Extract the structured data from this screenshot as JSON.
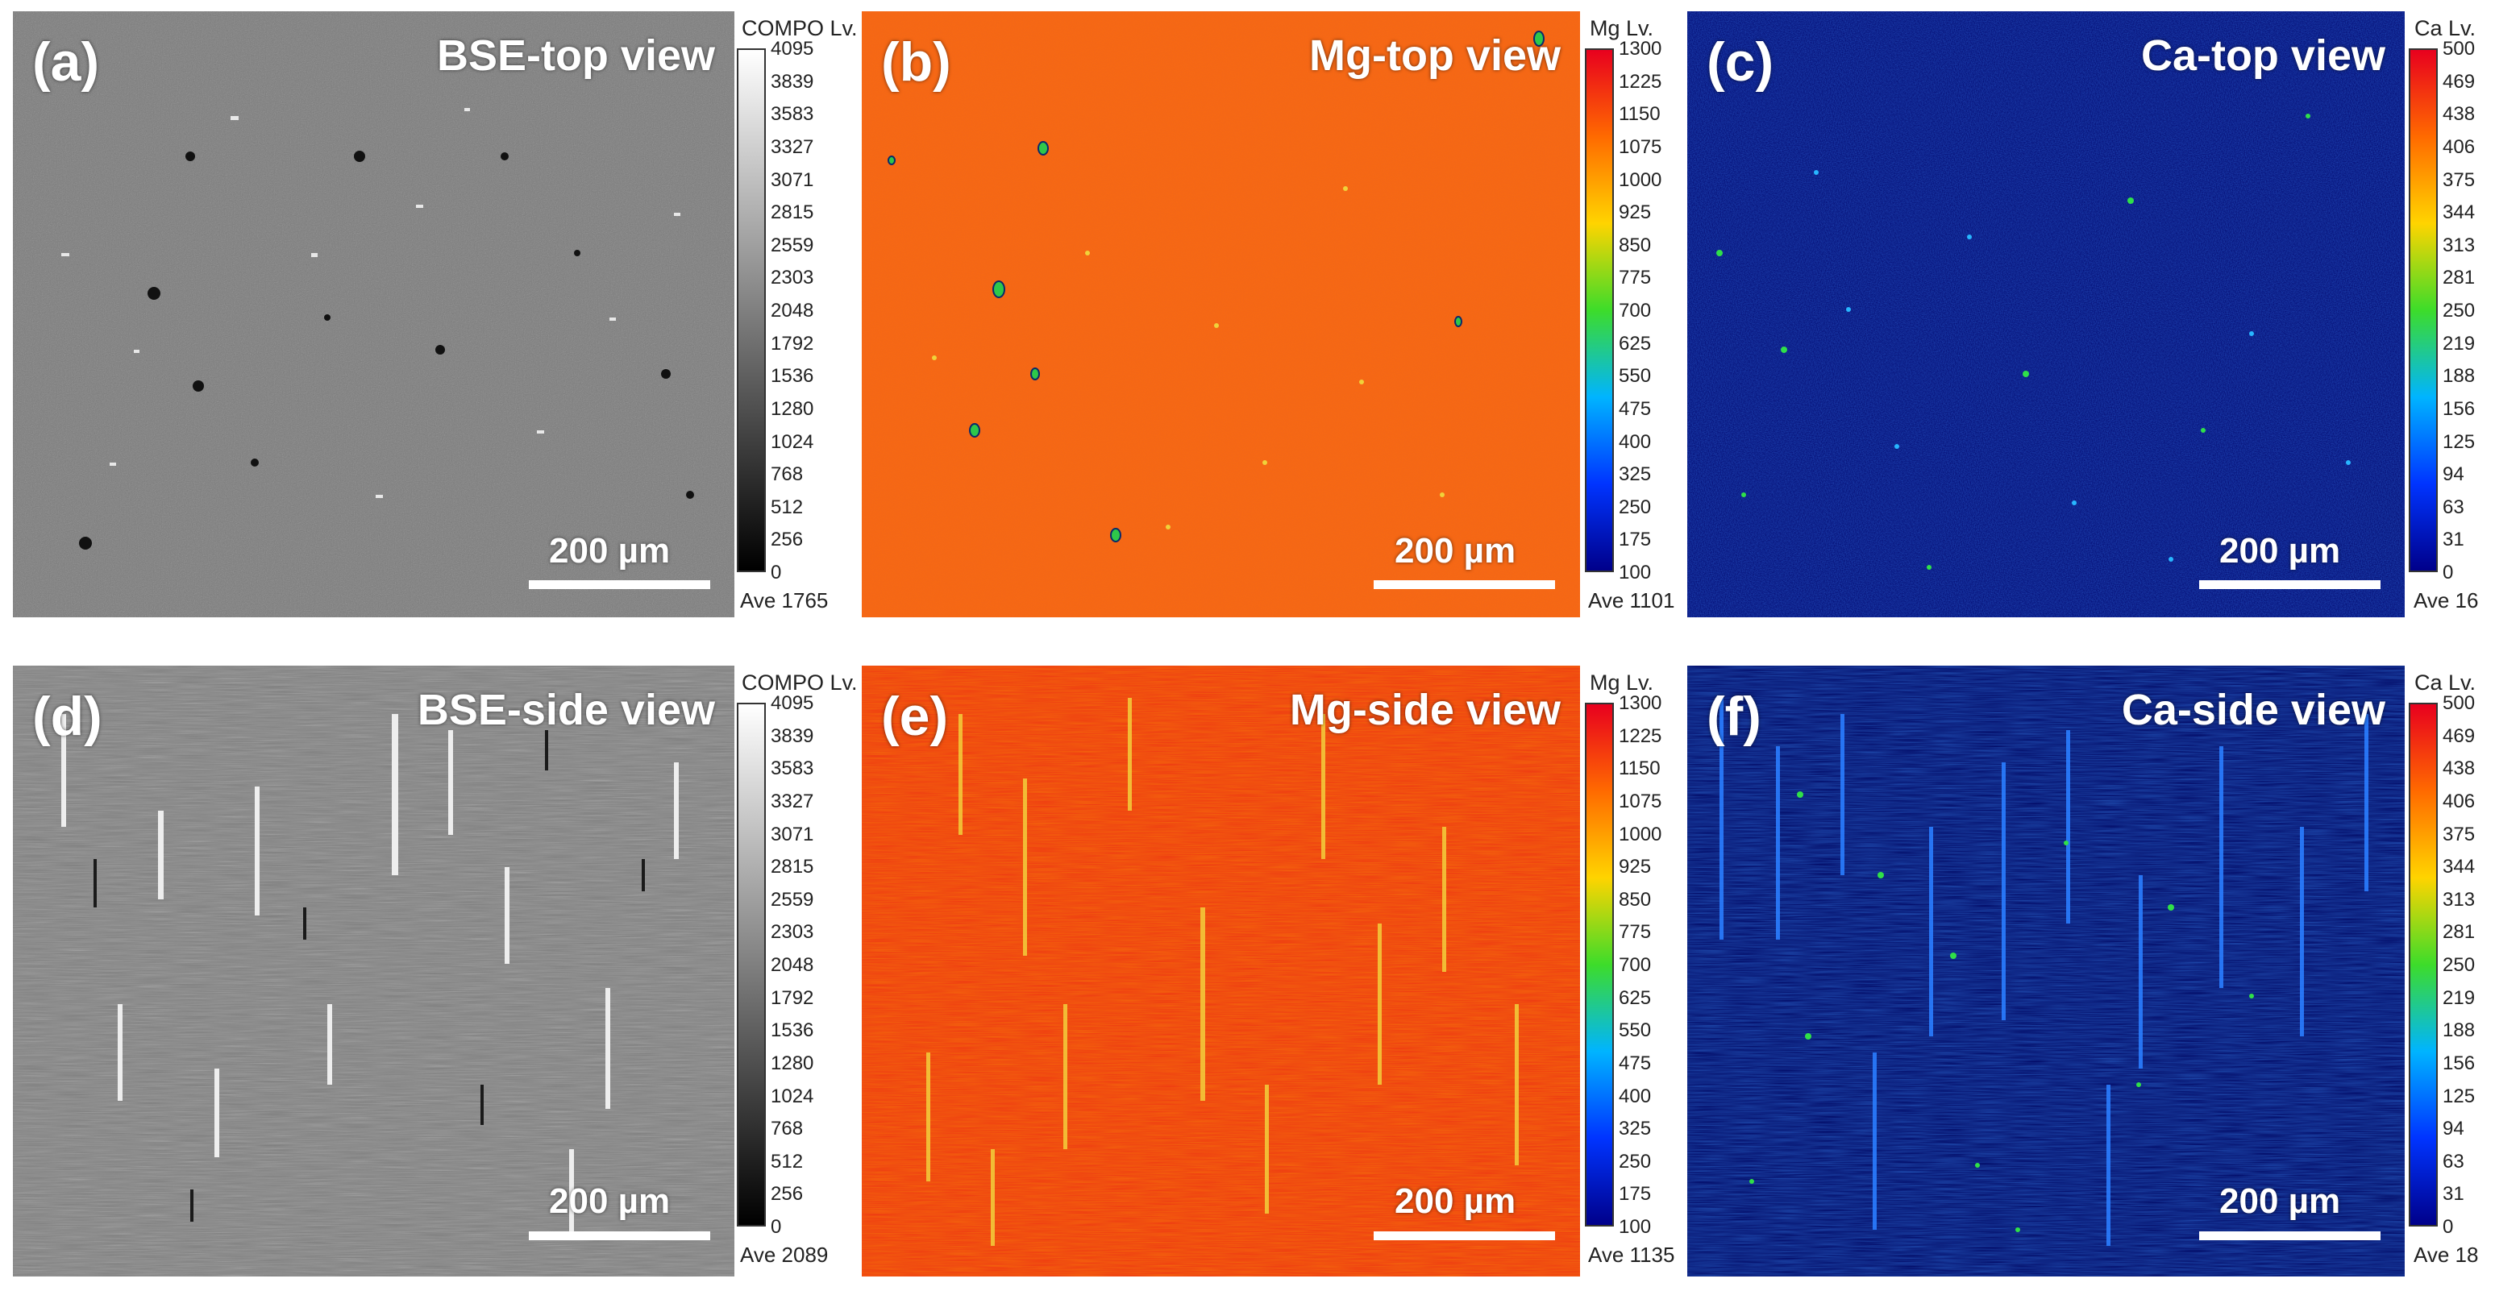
{
  "panels": [
    {
      "label": "(a)",
      "title": "BSE-top view",
      "scalebar": "200 µm",
      "cbar_header": "COMPO  Lv.",
      "ticks": [
        "4095",
        "3839",
        "3583",
        "3327",
        "3071",
        "2815",
        "2559",
        "2303",
        "2048",
        "1792",
        "1536",
        "1280",
        "1024",
        "768",
        "512",
        "256",
        "0"
      ],
      "average": "Ave 1765",
      "colormap": "gray"
    },
    {
      "label": "(b)",
      "title": "Mg-top view",
      "scalebar": "200 µm",
      "cbar_header": "Mg  Lv.",
      "ticks": [
        "1300",
        "1225",
        "1150",
        "1075",
        "1000",
        "925",
        "850",
        "775",
        "700",
        "625",
        "550",
        "475",
        "400",
        "325",
        "250",
        "175",
        "100"
      ],
      "average": "Ave 1101",
      "colormap": "jet"
    },
    {
      "label": "(c)",
      "title": "Ca-top view",
      "scalebar": "200 µm",
      "cbar_header": "Ca  Lv.",
      "ticks": [
        "500",
        "469",
        "438",
        "406",
        "375",
        "344",
        "313",
        "281",
        "250",
        "219",
        "188",
        "156",
        "125",
        "94",
        "63",
        "31",
        "0"
      ],
      "average": "Ave 16",
      "colormap": "jet"
    },
    {
      "label": "(d)",
      "title": "BSE-side view",
      "scalebar": "200 µm",
      "cbar_header": "COMPO  Lv.",
      "ticks": [
        "4095",
        "3839",
        "3583",
        "3327",
        "3071",
        "2815",
        "2559",
        "2303",
        "2048",
        "1792",
        "1536",
        "1280",
        "1024",
        "768",
        "512",
        "256",
        "0"
      ],
      "average": "Ave 2089",
      "colormap": "gray"
    },
    {
      "label": "(e)",
      "title": "Mg-side view",
      "scalebar": "200 µm",
      "cbar_header": "Mg  Lv.",
      "ticks": [
        "1300",
        "1225",
        "1150",
        "1075",
        "1000",
        "925",
        "850",
        "775",
        "700",
        "625",
        "550",
        "475",
        "400",
        "325",
        "250",
        "175",
        "100"
      ],
      "average": "Ave 1135",
      "colormap": "jet"
    },
    {
      "label": "(f)",
      "title": "Ca-side view",
      "scalebar": "200 µm",
      "cbar_header": "Ca  Lv.",
      "ticks": [
        "500",
        "469",
        "438",
        "406",
        "375",
        "344",
        "313",
        "281",
        "250",
        "219",
        "188",
        "156",
        "125",
        "94",
        "63",
        "31",
        "0"
      ],
      "average": "Ave 18",
      "colormap": "jet"
    }
  ]
}
